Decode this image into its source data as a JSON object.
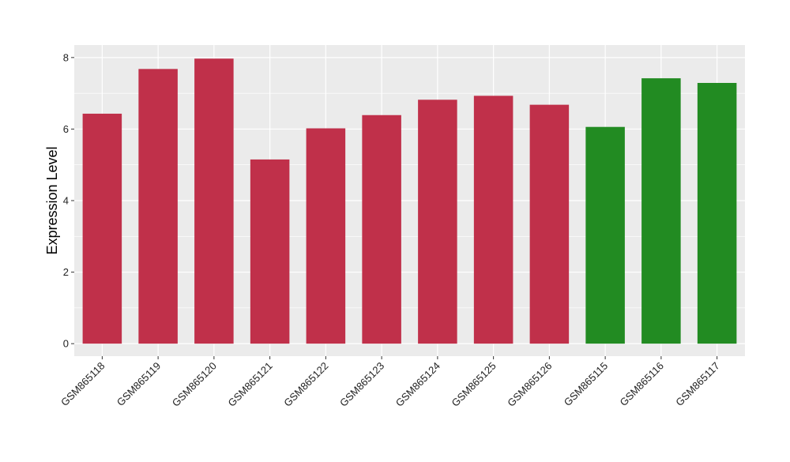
{
  "chart_data": {
    "type": "bar",
    "title": "",
    "xlabel": "",
    "ylabel": "Expression Level",
    "ylim": [
      -0.35,
      8.35
    ],
    "yticks": [
      0,
      2,
      4,
      6,
      8
    ],
    "grid": true,
    "categories": [
      "GSM865118",
      "GSM865119",
      "GSM865120",
      "GSM865121",
      "GSM865122",
      "GSM865123",
      "GSM865124",
      "GSM865125",
      "GSM865126",
      "GSM865115",
      "GSM865116",
      "GSM865117"
    ],
    "values": [
      6.43,
      7.68,
      7.97,
      5.15,
      6.02,
      6.39,
      6.82,
      6.93,
      6.68,
      6.06,
      7.42,
      7.29
    ],
    "group_colors": [
      "#C0304A",
      "#C0304A",
      "#C0304A",
      "#C0304A",
      "#C0304A",
      "#C0304A",
      "#C0304A",
      "#C0304A",
      "#C0304A",
      "#228B22",
      "#228B22",
      "#228B22"
    ],
    "panel_background": "#EBEBEB",
    "gridline_color": "#FFFFFF"
  }
}
